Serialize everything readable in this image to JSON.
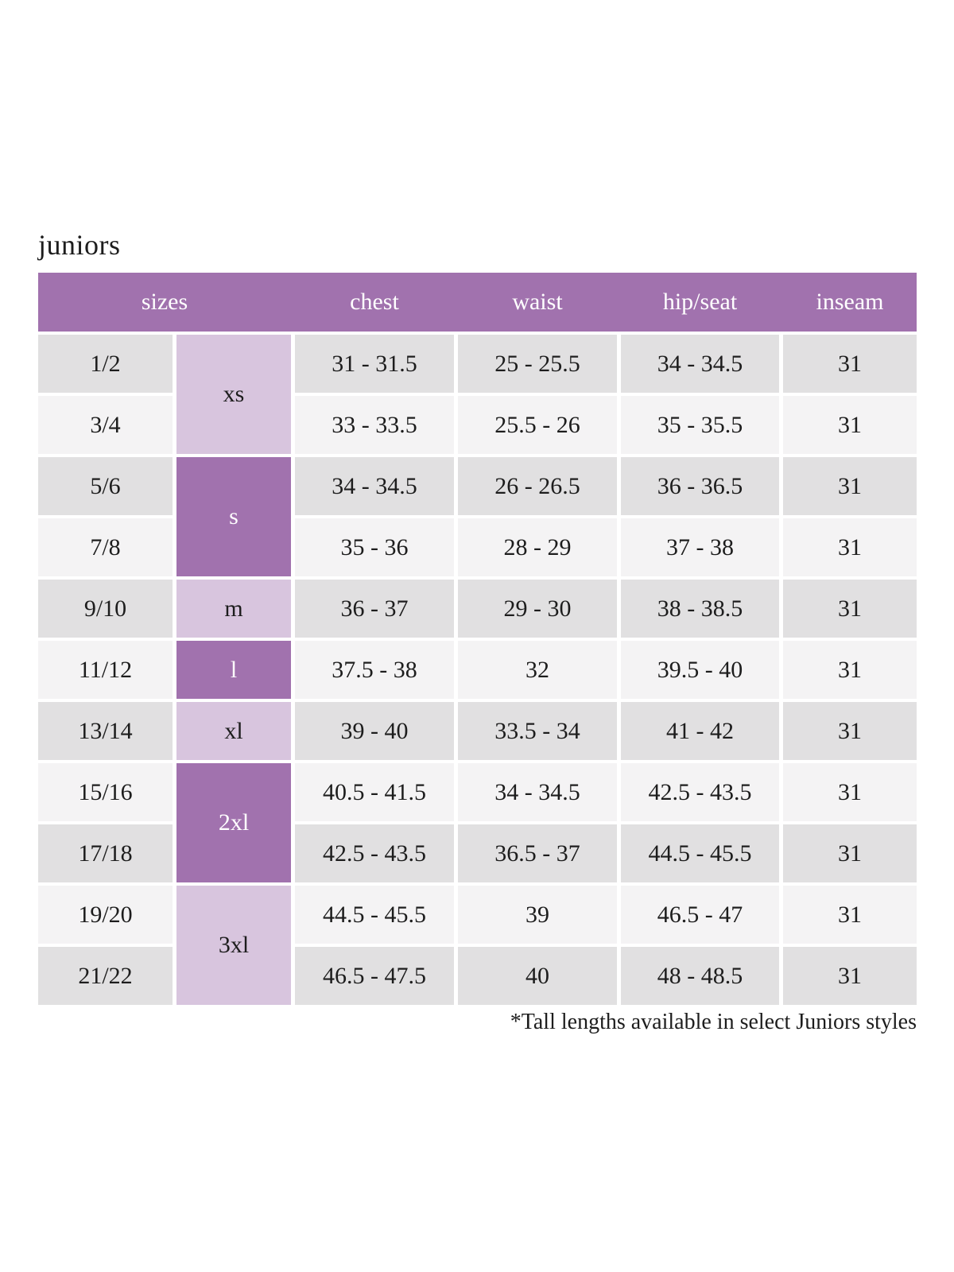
{
  "theme": {
    "purple": "#a172ae",
    "purple-light": "#d8c5de",
    "row-gray": "#e1e0e1",
    "row-light": "#f4f3f4",
    "ink": "#1d1d1d",
    "paper": "#ffffff"
  },
  "page": {
    "title": "juniors",
    "footnote": "*Tall lengths available in select Juniors styles"
  },
  "table": {
    "header": {
      "sizes": "sizes",
      "chest": "chest",
      "waist": "waist",
      "hip_seat": "hip/seat",
      "inseam": "inseam"
    },
    "groups": [
      {
        "label": "xs",
        "tone": "light",
        "rows": "1/2 - 3/4"
      },
      {
        "label": "s",
        "tone": "dark",
        "rows": "5/6 - 7/8"
      },
      {
        "label": "m",
        "tone": "light",
        "rows": "9/10"
      },
      {
        "label": "l",
        "tone": "dark",
        "rows": "11/12"
      },
      {
        "label": "xl",
        "tone": "light",
        "rows": "13/14"
      },
      {
        "label": "2xl",
        "tone": "dark",
        "rows": "15/16 - 17/18"
      },
      {
        "label": "3xl",
        "tone": "light",
        "rows": "19/20 - 21/22"
      }
    ],
    "rows": [
      {
        "size": "1/2",
        "chest": "31 - 31.5",
        "waist": "25 - 25.5",
        "hip_seat": "34 - 34.5",
        "inseam": "31"
      },
      {
        "size": "3/4",
        "chest": "33 - 33.5",
        "waist": "25.5 - 26",
        "hip_seat": "35 - 35.5",
        "inseam": "31"
      },
      {
        "size": "5/6",
        "chest": "34 - 34.5",
        "waist": "26 - 26.5",
        "hip_seat": "36 - 36.5",
        "inseam": "31"
      },
      {
        "size": "7/8",
        "chest": "35 - 36",
        "waist": "28 - 29",
        "hip_seat": "37 - 38",
        "inseam": "31"
      },
      {
        "size": "9/10",
        "chest": "36 - 37",
        "waist": "29 - 30",
        "hip_seat": "38 - 38.5",
        "inseam": "31"
      },
      {
        "size": "11/12",
        "chest": "37.5 - 38",
        "waist": "32",
        "hip_seat": "39.5 - 40",
        "inseam": "31"
      },
      {
        "size": "13/14",
        "chest": "39 - 40",
        "waist": "33.5 - 34",
        "hip_seat": "41 - 42",
        "inseam": "31"
      },
      {
        "size": "15/16",
        "chest": "40.5 - 41.5",
        "waist": "34 - 34.5",
        "hip_seat": "42.5 - 43.5",
        "inseam": "31"
      },
      {
        "size": "17/18",
        "chest": "42.5 - 43.5",
        "waist": "36.5 - 37",
        "hip_seat": "44.5 - 45.5",
        "inseam": "31"
      },
      {
        "size": "19/20",
        "chest": "44.5 - 45.5",
        "waist": "39",
        "hip_seat": "46.5 - 47",
        "inseam": "31"
      },
      {
        "size": "21/22",
        "chest": "46.5 - 47.5",
        "waist": "40",
        "hip_seat": "48 - 48.5",
        "inseam": "31"
      }
    ]
  }
}
